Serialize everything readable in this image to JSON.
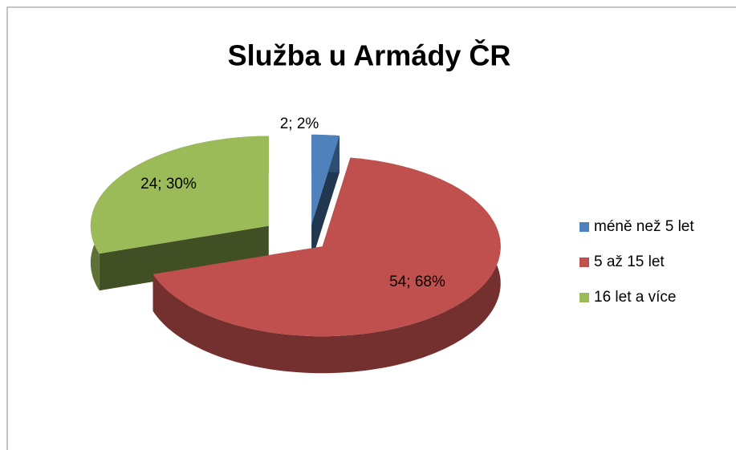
{
  "chart_data": {
    "type": "pie",
    "title": "Služba u Armády ČR",
    "categories": [
      "méně než 5 let",
      "5 až 15 let",
      "16 let a více"
    ],
    "values": [
      2,
      54,
      24
    ],
    "value_labels": [
      "2; 2%",
      "54; 68%",
      "24; 30%"
    ],
    "colors": [
      "#4f81bd",
      "#c0504d",
      "#9bbb59"
    ],
    "legend": "right"
  }
}
